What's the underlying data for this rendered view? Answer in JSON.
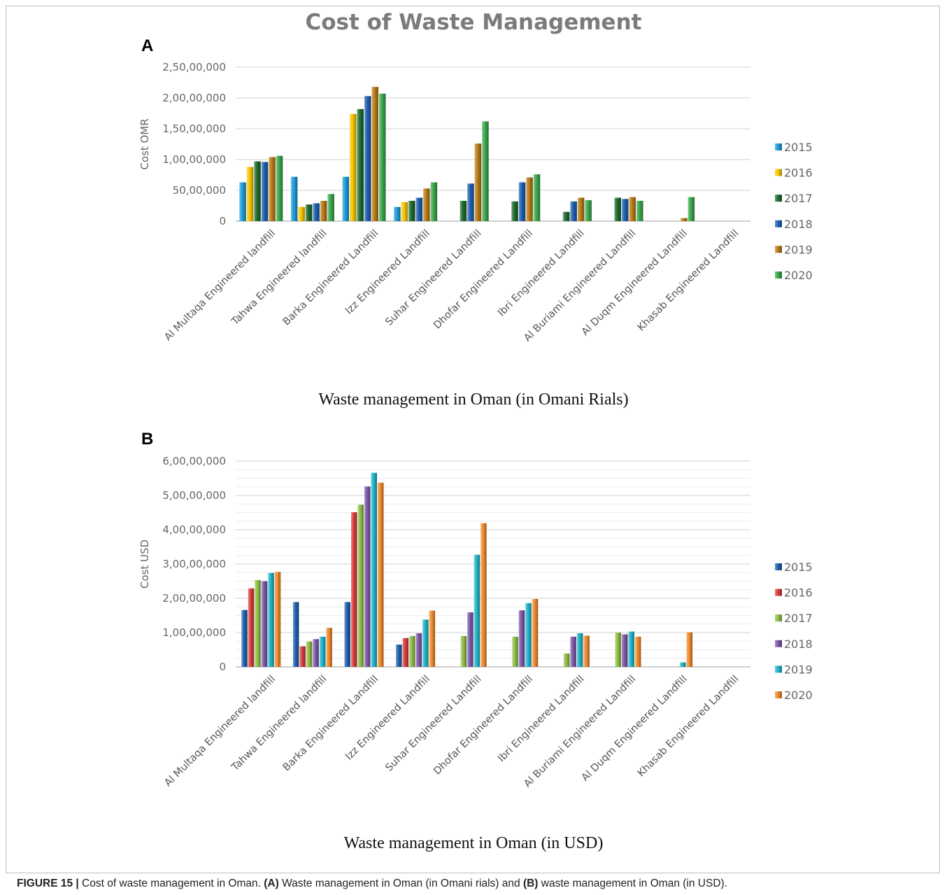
{
  "figure": {
    "title": "Cost of Waste Management",
    "caption_label": "FIGURE 15 |",
    "caption_text_1": " Cost of waste management in Oman. ",
    "caption_a": "(A)",
    "caption_text_2": " Waste management in Oman (in Omani rials) and ",
    "caption_b": "(B)",
    "caption_text_3": " waste management in Oman (in USD)."
  },
  "chart_data": [
    {
      "panel": "A",
      "type": "bar",
      "subtitle": "Waste management in Oman (in Omani Rials)",
      "ylabel": "Cost OMR",
      "ylim": [
        0,
        25000000
      ],
      "yticks": [
        0,
        5000000,
        10000000,
        15000000,
        20000000,
        25000000
      ],
      "ytick_labels": [
        "0",
        "50,00,000",
        "1,00,00,000",
        "1,50,00,000",
        "2,00,00,000",
        "2,50,00,000"
      ],
      "grid": true,
      "legend_position": "right",
      "categories": [
        "Al Multaqa Engineered landfill",
        "Tahwa Engineered landfill",
        "Barka Engineered Landfill",
        "Izz Engineered Landfill",
        "Suhar Engineered Landfill",
        "Dhofar Engineered Landfill",
        "Ibri Engineered Landfill",
        "Al Buriami Engineered Landfill",
        "Al Duqm Engineered Landfill",
        "Khasab Engineered Landfill"
      ],
      "series": [
        {
          "name": "2015",
          "color": "#1f9bd8",
          "values": [
            6300000,
            7200000,
            7200000,
            2300000,
            0,
            0,
            0,
            0,
            0,
            0
          ]
        },
        {
          "name": "2016",
          "color": "#f5c400",
          "values": [
            8800000,
            2300000,
            17400000,
            3100000,
            0,
            0,
            0,
            0,
            0,
            0
          ]
        },
        {
          "name": "2017",
          "color": "#1d6b2c",
          "values": [
            9700000,
            2700000,
            18200000,
            3300000,
            3300000,
            3200000,
            1500000,
            3800000,
            0,
            0
          ]
        },
        {
          "name": "2018",
          "color": "#1f5fae",
          "values": [
            9600000,
            2900000,
            20300000,
            3800000,
            6100000,
            6300000,
            3200000,
            3600000,
            0,
            0
          ]
        },
        {
          "name": "2019",
          "color": "#b87a16",
          "values": [
            10400000,
            3300000,
            21800000,
            5300000,
            12600000,
            7100000,
            3800000,
            3900000,
            500000,
            0
          ]
        },
        {
          "name": "2020",
          "color": "#3aa74b",
          "values": [
            10600000,
            4400000,
            20700000,
            6300000,
            16200000,
            7600000,
            3400000,
            3300000,
            3900000,
            0
          ]
        }
      ]
    },
    {
      "panel": "B",
      "type": "bar",
      "subtitle": "Waste management in Oman (in USD)",
      "ylabel": "Cost USD",
      "ylim": [
        0,
        60000000
      ],
      "yticks": [
        0,
        10000000,
        20000000,
        30000000,
        40000000,
        50000000,
        60000000
      ],
      "ytick_labels": [
        "0",
        "1,00,00,000",
        "2,00,00,000",
        "3,00,00,000",
        "4,00,00,000",
        "5,00,00,000",
        "6,00,00,000"
      ],
      "grid": true,
      "legend_position": "right",
      "categories": [
        "Al Multaqa Engineered landfill",
        "Tahwa Engineered landfill",
        "Barka Engineered Landfill",
        "Izz Engineered Landfill",
        "Suhar Engineered Landfill",
        "Dhofar Engineered Landfill",
        "Ibri Engineered Landfill",
        "Al Buriami Engineered Landfill",
        "Al Duqm Engineered Landfill",
        "Khasab Engineered Landfill"
      ],
      "series": [
        {
          "name": "2015",
          "color": "#1f5fae",
          "values": [
            16600000,
            18900000,
            18900000,
            6500000,
            0,
            0,
            0,
            0,
            0,
            0
          ]
        },
        {
          "name": "2016",
          "color": "#d73b3b",
          "values": [
            22900000,
            6000000,
            45100000,
            8400000,
            0,
            0,
            0,
            0,
            0,
            0
          ]
        },
        {
          "name": "2017",
          "color": "#8dbd45",
          "values": [
            25300000,
            7400000,
            47300000,
            9000000,
            9000000,
            8800000,
            3900000,
            10000000,
            0,
            0
          ]
        },
        {
          "name": "2018",
          "color": "#7c58a8",
          "values": [
            25000000,
            8100000,
            52600000,
            9800000,
            15900000,
            16500000,
            8800000,
            9500000,
            0,
            0
          ]
        },
        {
          "name": "2019",
          "color": "#1fb4c9",
          "values": [
            27400000,
            8800000,
            56600000,
            13800000,
            32700000,
            18600000,
            9800000,
            10300000,
            1300000,
            0
          ]
        },
        {
          "name": "2020",
          "color": "#f08a2c",
          "values": [
            27700000,
            11400000,
            53700000,
            16400000,
            41900000,
            19800000,
            9100000,
            8800000,
            10100000,
            0
          ]
        }
      ]
    }
  ]
}
